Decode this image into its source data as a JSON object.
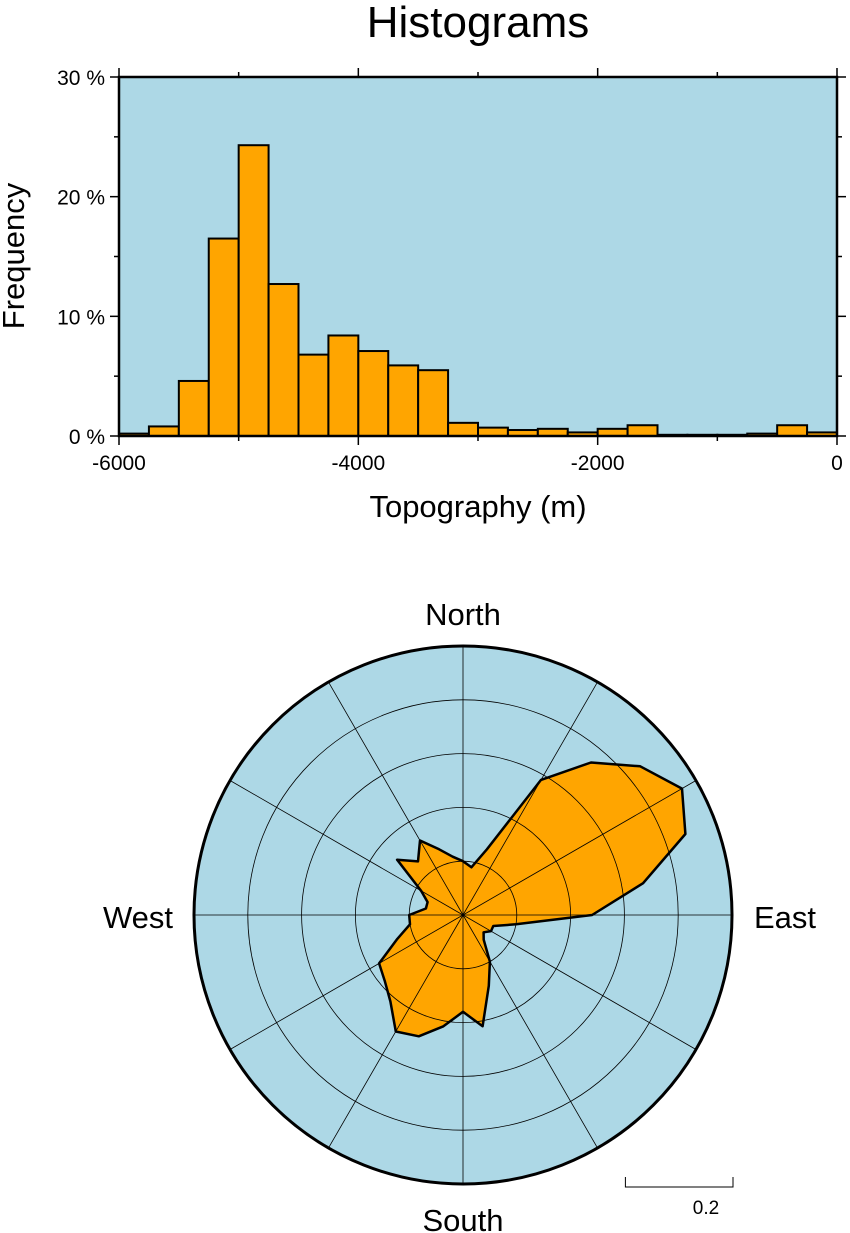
{
  "title": "Histograms",
  "chart_data": [
    {
      "type": "bar",
      "title": "Histograms",
      "xlabel": "Topography (m)",
      "ylabel": "Frequency",
      "xlim": [
        -6000,
        0
      ],
      "ylim": [
        0,
        30
      ],
      "bin_width": 250,
      "x_ticks": [
        -6000,
        -4000,
        -2000,
        0
      ],
      "x_tick_labels": [
        "-6000",
        "-4000",
        "-2000",
        "0"
      ],
      "y_ticks": [
        0,
        10,
        20,
        30
      ],
      "y_tick_labels": [
        "0 %",
        "10 %",
        "20 %",
        "30 %"
      ],
      "background_color": "#add8e6",
      "bar_color": "#ffa500",
      "bins": [
        -6000,
        -5750,
        -5500,
        -5250,
        -5000,
        -4750,
        -4500,
        -4250,
        -4000,
        -3750,
        -3500,
        -3250,
        -3000,
        -2750,
        -2500,
        -2250,
        -2000,
        -1750,
        -1500,
        -1250,
        -1000,
        -750,
        -500,
        -250
      ],
      "values": [
        0.2,
        0.8,
        4.6,
        16.5,
        24.3,
        12.7,
        6.8,
        8.4,
        7.1,
        5.9,
        5.5,
        1.1,
        0.7,
        0.5,
        0.6,
        0.3,
        0.6,
        0.9,
        0.1,
        0.1,
        0.1,
        0.2,
        0.9,
        0.3
      ]
    },
    {
      "type": "rose",
      "background_color": "#add8e6",
      "fill_color": "#ffa500",
      "direction_labels": {
        "north": "North",
        "east": "East",
        "south": "South",
        "west": "West"
      },
      "radial_max": 0.5,
      "radial_rings": [
        0.1,
        0.2,
        0.3,
        0.4
      ],
      "angular_spokes": [
        0,
        30,
        60,
        90,
        120,
        150,
        180,
        210,
        240,
        270,
        300,
        330
      ],
      "scale_label": "0.2",
      "scale_value": 0.2,
      "profile": [
        {
          "azimuth": 0,
          "r": 0.1
        },
        {
          "azimuth": 10,
          "r": 0.09
        },
        {
          "azimuth": 20,
          "r": 0.13
        },
        {
          "azimuth": 30,
          "r": 0.29
        },
        {
          "azimuth": 40,
          "r": 0.37
        },
        {
          "azimuth": 50,
          "r": 0.43
        },
        {
          "azimuth": 60,
          "r": 0.47
        },
        {
          "azimuth": 70,
          "r": 0.44
        },
        {
          "azimuth": 80,
          "r": 0.34
        },
        {
          "azimuth": 90,
          "r": 0.24
        },
        {
          "azimuth": 100,
          "r": 0.1
        },
        {
          "azimuth": 110,
          "r": 0.06
        },
        {
          "azimuth": 120,
          "r": 0.06
        },
        {
          "azimuth": 130,
          "r": 0.05
        },
        {
          "azimuth": 140,
          "r": 0.06
        },
        {
          "azimuth": 150,
          "r": 0.1
        },
        {
          "azimuth": 160,
          "r": 0.14
        },
        {
          "azimuth": 170,
          "r": 0.21
        },
        {
          "azimuth": 180,
          "r": 0.18
        },
        {
          "azimuth": 190,
          "r": 0.21
        },
        {
          "azimuth": 200,
          "r": 0.24
        },
        {
          "azimuth": 210,
          "r": 0.25
        },
        {
          "azimuth": 220,
          "r": 0.21
        },
        {
          "azimuth": 230,
          "r": 0.19
        },
        {
          "azimuth": 240,
          "r": 0.18
        },
        {
          "azimuth": 250,
          "r": 0.13
        },
        {
          "azimuth": 260,
          "r": 0.1
        },
        {
          "azimuth": 270,
          "r": 0.1
        },
        {
          "azimuth": 280,
          "r": 0.07
        },
        {
          "azimuth": 290,
          "r": 0.07
        },
        {
          "azimuth": 300,
          "r": 0.09
        },
        {
          "azimuth": 310,
          "r": 0.16
        },
        {
          "azimuth": 320,
          "r": 0.13
        },
        {
          "azimuth": 330,
          "r": 0.16
        },
        {
          "azimuth": 340,
          "r": 0.13
        },
        {
          "azimuth": 350,
          "r": 0.11
        }
      ]
    }
  ]
}
